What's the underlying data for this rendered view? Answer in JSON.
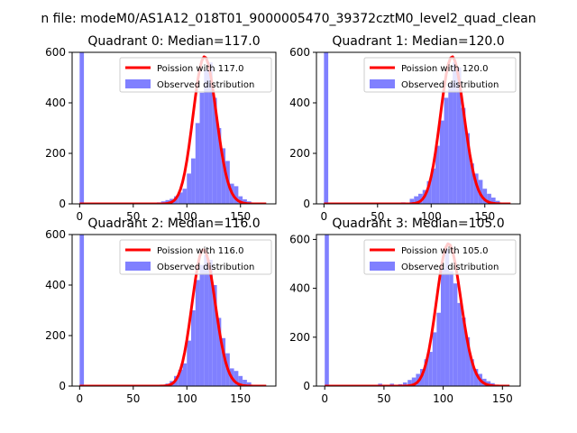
{
  "figure": {
    "title": "n file: modeM0/AS1A12_018T01_9000005470_39372cztM0_level2_quad_clean"
  },
  "colors": {
    "hist": "#8080ff",
    "poisson": "#ff0000",
    "poisson_light": "#ff8080",
    "axes": "#000000"
  },
  "chart_data": [
    {
      "type": "bar",
      "title": "Quadrant 0: Median=117.0",
      "xlim": [
        -7,
        183
      ],
      "ylim": [
        0,
        600
      ],
      "xticks": [
        0,
        50,
        100,
        150
      ],
      "yticks": [
        0,
        200,
        400,
        600
      ],
      "legend_placement": "upper right",
      "series": [
        {
          "name": "Poission with 117.0",
          "kind": "line",
          "mean": 117.0
        },
        {
          "name": "Observed distribution",
          "kind": "hist",
          "bin_width": 4,
          "bins": [
            [
              0,
              620
            ],
            [
              60,
              2
            ],
            [
              64,
              3
            ],
            [
              68,
              4
            ],
            [
              72,
              6
            ],
            [
              76,
              10
            ],
            [
              80,
              15
            ],
            [
              84,
              20
            ],
            [
              88,
              30
            ],
            [
              92,
              45
            ],
            [
              96,
              60
            ],
            [
              100,
              120
            ],
            [
              104,
              180
            ],
            [
              108,
              320
            ],
            [
              112,
              440
            ],
            [
              116,
              530
            ],
            [
              120,
              560
            ],
            [
              124,
              420
            ],
            [
              128,
              300
            ],
            [
              132,
              220
            ],
            [
              136,
              170
            ],
            [
              140,
              80
            ],
            [
              144,
              70
            ],
            [
              148,
              30
            ],
            [
              152,
              18
            ],
            [
              156,
              10
            ],
            [
              160,
              5
            ],
            [
              164,
              3
            ]
          ]
        }
      ]
    },
    {
      "type": "bar",
      "title": "Quadrant 1: Median=120.0",
      "xlim": [
        -7,
        183
      ],
      "ylim": [
        0,
        600
      ],
      "xticks": [
        0,
        50,
        100,
        150
      ],
      "yticks": [
        0,
        200,
        400,
        600
      ],
      "legend_placement": "upper right",
      "series": [
        {
          "name": "Poission with 120.0",
          "kind": "line",
          "mean": 120.0
        },
        {
          "name": "Observed distribution",
          "kind": "hist",
          "bin_width": 4,
          "bins": [
            [
              0,
              620
            ],
            [
              64,
              3
            ],
            [
              72,
              6
            ],
            [
              80,
              20
            ],
            [
              84,
              30
            ],
            [
              88,
              40
            ],
            [
              92,
              55
            ],
            [
              96,
              90
            ],
            [
              100,
              140
            ],
            [
              104,
              230
            ],
            [
              108,
              330
            ],
            [
              112,
              420
            ],
            [
              116,
              480
            ],
            [
              120,
              560
            ],
            [
              124,
              540
            ],
            [
              128,
              380
            ],
            [
              132,
              280
            ],
            [
              136,
              160
            ],
            [
              140,
              120
            ],
            [
              144,
              95
            ],
            [
              148,
              60
            ],
            [
              152,
              40
            ],
            [
              156,
              25
            ],
            [
              160,
              12
            ],
            [
              164,
              5
            ]
          ]
        }
      ]
    },
    {
      "type": "bar",
      "title": "Quadrant 2: Median=116.0",
      "xlim": [
        -7,
        183
      ],
      "ylim": [
        0,
        600
      ],
      "xticks": [
        0,
        50,
        100,
        150
      ],
      "yticks": [
        0,
        200,
        400,
        600
      ],
      "legend_placement": "upper right",
      "series": [
        {
          "name": "Poission with 116.0",
          "kind": "line",
          "mean": 116.0
        },
        {
          "name": "Observed distribution",
          "kind": "hist",
          "bin_width": 4,
          "bins": [
            [
              0,
              620
            ],
            [
              76,
              3
            ],
            [
              80,
              10
            ],
            [
              84,
              20
            ],
            [
              88,
              40
            ],
            [
              92,
              65
            ],
            [
              96,
              90
            ],
            [
              100,
              180
            ],
            [
              104,
              300
            ],
            [
              108,
              420
            ],
            [
              112,
              480
            ],
            [
              116,
              520
            ],
            [
              120,
              500
            ],
            [
              124,
              400
            ],
            [
              128,
              270
            ],
            [
              132,
              190
            ],
            [
              136,
              130
            ],
            [
              140,
              70
            ],
            [
              144,
              60
            ],
            [
              148,
              40
            ],
            [
              152,
              25
            ],
            [
              156,
              15
            ],
            [
              160,
              5
            ]
          ]
        }
      ]
    },
    {
      "type": "bar",
      "title": "Quadrant 3: Median=105.0",
      "xlim": [
        -7,
        165
      ],
      "ylim": [
        0,
        620
      ],
      "xticks": [
        0,
        50,
        100,
        150
      ],
      "yticks": [
        0,
        200,
        400,
        600
      ],
      "legend_placement": "upper right",
      "series": [
        {
          "name": "Poission with 105.0",
          "kind": "line",
          "mean": 105.0
        },
        {
          "name": "Observed distribution",
          "kind": "hist",
          "bin_width": 3.5,
          "bins": [
            [
              0,
              620
            ],
            [
              35,
              5
            ],
            [
              45,
              10
            ],
            [
              55,
              10
            ],
            [
              62,
              8
            ],
            [
              66,
              15
            ],
            [
              70,
              25
            ],
            [
              73.5,
              35
            ],
            [
              77,
              50
            ],
            [
              80.5,
              70
            ],
            [
              84,
              110
            ],
            [
              87.5,
              140
            ],
            [
              91,
              220
            ],
            [
              94.5,
              300
            ],
            [
              98,
              480
            ],
            [
              101.5,
              560
            ],
            [
              105,
              470
            ],
            [
              108.5,
              420
            ],
            [
              112,
              340
            ],
            [
              115.5,
              280
            ],
            [
              119,
              200
            ],
            [
              122.5,
              110
            ],
            [
              126,
              70
            ],
            [
              129.5,
              50
            ],
            [
              133,
              30
            ],
            [
              136.5,
              20
            ],
            [
              140,
              12
            ],
            [
              145,
              5
            ]
          ]
        }
      ]
    }
  ]
}
